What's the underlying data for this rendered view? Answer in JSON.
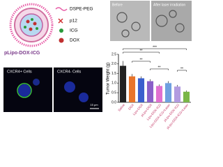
{
  "schematic": {
    "label": "pLipo-DOX-ICG",
    "legend": [
      "DSPE-PEG",
      "p12",
      "ICG",
      "DOX"
    ]
  },
  "tem": {
    "labels": [
      "Before",
      "After laser irradiation"
    ]
  },
  "microscopy": {
    "labels": [
      "CXCR4+ Cells",
      "CXCR4- Cells"
    ],
    "scale": "15 μm"
  },
  "chart_data": {
    "type": "bar",
    "y_label": "Tumor Weight (g)",
    "categories": [
      "Saline",
      "DOX",
      "Lipo-DOX",
      "pLipo-DOX",
      "Lipo-DOX-ICG",
      "Lipo-DOX-ICG+Laser",
      "pLipo-DOX-ICG",
      "pLipo-DOX-ICG+Laser"
    ],
    "values": [
      1.9,
      1.35,
      1.25,
      1.1,
      0.85,
      1.0,
      0.82,
      0.55
    ],
    "errors": [
      0.25,
      0.12,
      0.1,
      0.1,
      0.08,
      0.1,
      0.08,
      0.06
    ],
    "colors": [
      "#222222",
      "#e8742a",
      "#3a5fcd",
      "#8a5fc8",
      "#e070d0",
      "#6fa0e0",
      "#b29be0",
      "#7ab648"
    ],
    "significance": [
      "***",
      "**",
      "**",
      "**",
      "**"
    ],
    "ylim": [
      0,
      2.5
    ],
    "yticks": [
      {
        "value": 0,
        "label": "0.0"
      },
      0.5,
      {
        "value": 1,
        "label": "1.0"
      },
      1.5,
      {
        "value": 2,
        "label": "2.0"
      },
      2.5
    ]
  }
}
